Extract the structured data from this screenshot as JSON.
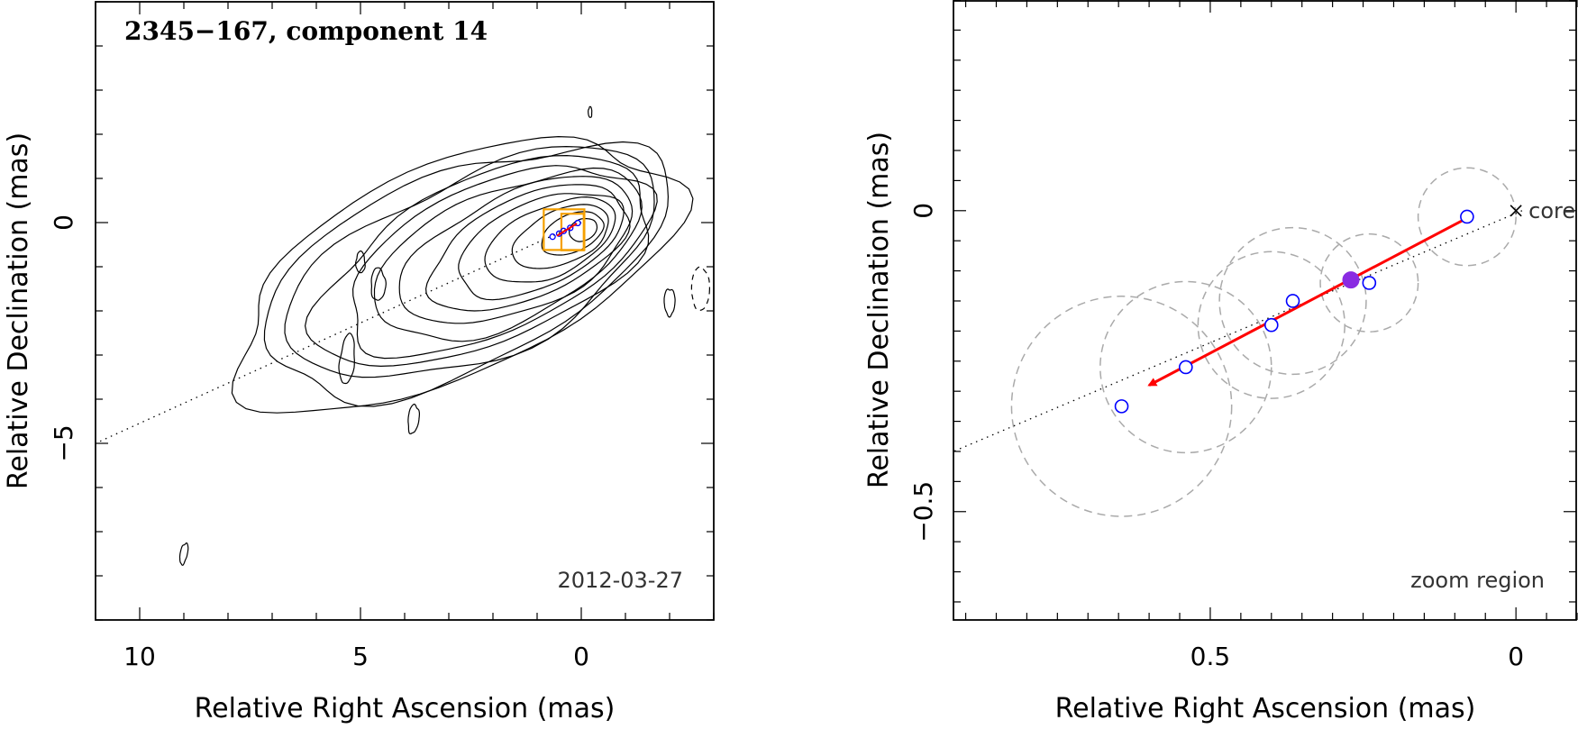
{
  "chart_data": [
    {
      "type": "contour",
      "title": "2345−167, component 14",
      "annotation": "2012-03-27",
      "xlabel": "Relative Right Ascension (mas)",
      "ylabel": "Relative Declination (mas)",
      "xlim": [
        11,
        -3
      ],
      "ylim": [
        -9,
        5
      ],
      "xticks": [
        {
          "value": 10,
          "label": "10"
        },
        {
          "value": 5,
          "label": "5"
        },
        {
          "value": 0,
          "label": "0"
        }
      ],
      "yticks": [
        {
          "value": 0,
          "label": "0"
        },
        {
          "value": -5,
          "label": "−5"
        }
      ],
      "colors": {
        "contour": "#000000",
        "box": "#f5a000",
        "arrow": "#ff0000",
        "points": "#0000ff",
        "dotted": "#000000"
      }
    },
    {
      "type": "scatter",
      "annotation": "zoom region",
      "core_label": "core",
      "xlabel": "Relative Right Ascension (mas)",
      "ylabel": "Relative Declination (mas)",
      "xlim": [
        0.92,
        -0.1
      ],
      "ylim": [
        -0.68,
        0.35
      ],
      "xticks": [
        {
          "value": 0.5,
          "label": "0.5"
        },
        {
          "value": 0,
          "label": "0"
        }
      ],
      "yticks": [
        {
          "value": 0,
          "label": "0"
        },
        {
          "value": -0.5,
          "label": "−0.5"
        }
      ],
      "points": [
        {
          "x": 0.08,
          "y": -0.01,
          "r": 0.08
        },
        {
          "x": 0.24,
          "y": -0.12,
          "r": 0.08
        },
        {
          "x": 0.365,
          "y": -0.15,
          "r": 0.12
        },
        {
          "x": 0.4,
          "y": -0.19,
          "r": 0.12
        },
        {
          "x": 0.54,
          "y": -0.26,
          "r": 0.14
        },
        {
          "x": 0.645,
          "y": -0.325,
          "r": 0.18
        }
      ],
      "highlight": {
        "x": 0.27,
        "y": -0.115
      },
      "arrow": {
        "from": [
          0.085,
          -0.015
        ],
        "to": [
          0.6,
          -0.29
        ]
      },
      "trend_line": {
        "from": [
          -0.01,
          0.0
        ],
        "to": [
          0.87,
          -0.4
        ]
      },
      "colors": {
        "points": "#0000ff",
        "highlight": "#8a2be2",
        "arrow": "#ff0000",
        "circles": "#aaaaaa",
        "dotted": "#000000"
      }
    }
  ]
}
